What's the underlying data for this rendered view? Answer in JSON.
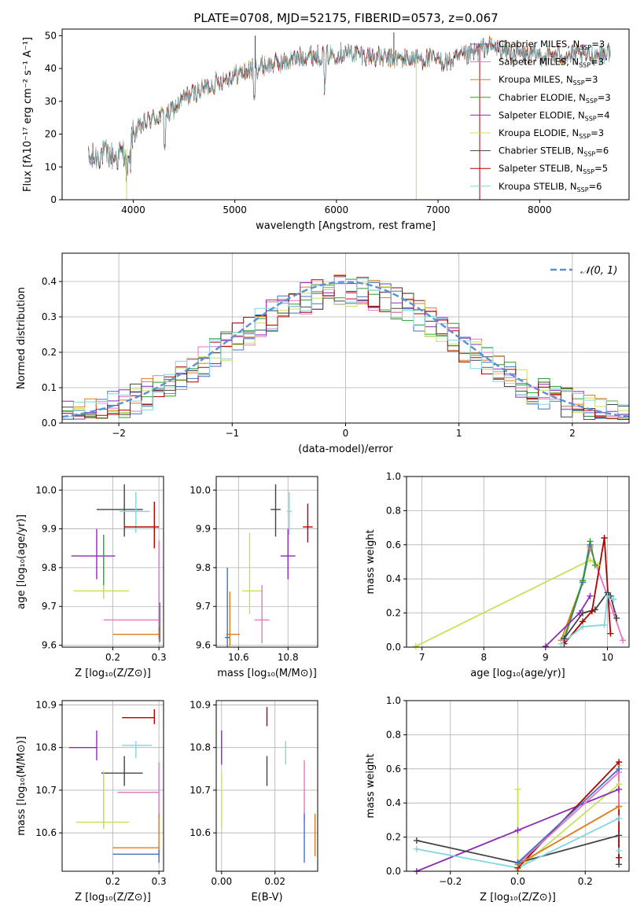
{
  "figure_title": "PLATE=0708, MJD=52175, FIBERID=0573, z=0.067",
  "colors": {
    "cha_miles": "#4472c4",
    "sal_miles": "#e377c2",
    "kro_miles": "#e07b1a",
    "cha_elodie": "#2ca02c",
    "sal_elodie": "#8c2bb8",
    "kro_elodie": "#c8e05a",
    "cha_stelib": "#444444",
    "sal_stelib": "#b00000",
    "kro_stelib": "#7fd6df",
    "gauss": "#5b8fd6",
    "grid": "#b0b0b0"
  },
  "legend_entries": [
    {
      "name": "Chabrier MILES",
      "n": "3",
      "key": "cha_miles"
    },
    {
      "name": "Salpeter MILES",
      "n": "3",
      "key": "sal_miles"
    },
    {
      "name": "Kroupa MILES",
      "n": "3",
      "key": "kro_miles"
    },
    {
      "name": "Chabrier ELODIE",
      "n": "3",
      "key": "cha_elodie"
    },
    {
      "name": "Salpeter ELODIE",
      "n": "4",
      "key": "sal_elodie"
    },
    {
      "name": "Kroupa ELODIE",
      "n": "3",
      "key": "kro_elodie"
    },
    {
      "name": "Chabrier STELIB",
      "n": "6",
      "key": "cha_stelib"
    },
    {
      "name": "Salpeter STELIB",
      "n": "5",
      "key": "sal_stelib"
    },
    {
      "name": "Kroupa STELIB",
      "n": "6",
      "key": "kro_stelib"
    }
  ],
  "chart_data": [
    {
      "id": "spectrum",
      "type": "line",
      "title": "PLATE=0708, MJD=52175, FIBERID=0573, z=0.067",
      "xlabel": "wavelength [Angstrom, rest frame]",
      "ylabel": "Flux [fλ10⁻¹⁷ erg cm⁻² s⁻¹ A⁻¹]",
      "xlim": [
        3300,
        8880
      ],
      "ylim": [
        0,
        52
      ],
      "xticks": [
        4000,
        5000,
        6000,
        7000,
        8000
      ],
      "yticks": [
        0,
        10,
        20,
        30,
        40,
        50
      ],
      "continuum": [
        [
          3560,
          12
        ],
        [
          3700,
          14
        ],
        [
          3850,
          13
        ],
        [
          3950,
          16
        ],
        [
          4000,
          20
        ],
        [
          4100,
          23
        ],
        [
          4200,
          25
        ],
        [
          4350,
          26
        ],
        [
          4500,
          31
        ],
        [
          4700,
          34
        ],
        [
          4900,
          37
        ],
        [
          5100,
          39
        ],
        [
          5300,
          41
        ],
        [
          5500,
          42
        ],
        [
          5700,
          44
        ],
        [
          5900,
          44
        ],
        [
          6100,
          45
        ],
        [
          6300,
          44
        ],
        [
          6500,
          43
        ],
        [
          6700,
          43
        ],
        [
          6900,
          43
        ],
        [
          7100,
          42
        ],
        [
          7300,
          44
        ],
        [
          7500,
          47
        ],
        [
          7700,
          45
        ],
        [
          7900,
          44
        ],
        [
          8100,
          44
        ],
        [
          8300,
          44
        ],
        [
          8500,
          44
        ],
        [
          8700,
          45
        ]
      ],
      "features": [
        {
          "x": 3935,
          "y": 0,
          "series": "kro_elodie"
        },
        {
          "x": 5200,
          "y": 50,
          "series": "cha_stelib"
        },
        {
          "x": 6565,
          "y": 51,
          "series": "cha_stelib"
        },
        {
          "x": 6785,
          "y": 0,
          "series": "kro_elodie"
        },
        {
          "x": 7410,
          "y": 0,
          "series": "sal_stelib"
        }
      ]
    },
    {
      "id": "residuals",
      "type": "histogram",
      "xlabel": "(data-model)/error",
      "ylabel": "Normed distribution",
      "xlim": [
        -2.5,
        2.5
      ],
      "ylim": [
        0,
        0.48
      ],
      "xticks": [
        -2,
        -1,
        0,
        1,
        2
      ],
      "yticks": [
        0.0,
        0.1,
        0.2,
        0.3,
        0.4
      ],
      "bin_width": 0.1,
      "legend": {
        "label": "𝒩(0, 1)",
        "placement": "top-right"
      },
      "gaussian": {
        "mu": 0,
        "sigma": 1
      }
    },
    {
      "id": "age_vs_Z",
      "type": "errorbar",
      "xlabel": "Z [log₁₀(Z/Z⊙)]",
      "ylabel": "age  [log₁₀(age/yr)]",
      "xlim": [
        0.09,
        0.31
      ],
      "ylim": [
        9.595,
        10.035
      ],
      "xticks": [
        0.2,
        0.3
      ],
      "yticks": [
        9.6,
        9.7,
        9.8,
        9.9,
        10.0
      ],
      "points": [
        {
          "s": "cha_stelib",
          "x": 0.225,
          "y": 9.95,
          "xe": [
            0.06,
            0.04
          ],
          "ye": [
            0.07,
            0.065
          ]
        },
        {
          "s": "kro_stelib",
          "x": 0.25,
          "y": 9.945,
          "xe": [
            0.035,
            0.03
          ],
          "ye": [
            0.055,
            0.05
          ]
        },
        {
          "s": "sal_stelib",
          "x": 0.29,
          "y": 9.905,
          "xe": [
            0.065,
            0.01
          ],
          "ye": [
            0.055,
            0.065
          ]
        },
        {
          "s": "sal_elodie",
          "x": 0.165,
          "y": 9.83,
          "xe": [
            0.055,
            0.04
          ],
          "ye": [
            0.06,
            0.07
          ]
        },
        {
          "s": "cha_elodie",
          "x": 0.18,
          "y": 9.8,
          "xe": [
            0.0,
            0.0
          ],
          "ye": [
            0.08,
            0.085
          ]
        },
        {
          "s": "kro_elodie",
          "x": 0.18,
          "y": 9.74,
          "xe": [
            0.065,
            0.055
          ],
          "ye": [
            0.02,
            0.015
          ]
        },
        {
          "s": "sal_miles",
          "x": 0.3,
          "y": 9.665,
          "xe": [
            0.12,
            0.0
          ],
          "ye": [
            0.05,
            0.205
          ]
        },
        {
          "s": "kro_miles",
          "x": 0.3,
          "y": 9.628,
          "xe": [
            0.1,
            0.0
          ],
          "ye": [
            0.01,
            0.02
          ]
        },
        {
          "s": "cha_miles",
          "x": 0.302,
          "y": 9.62,
          "xe": [
            0.0,
            0.0
          ],
          "ye": [
            0.012,
            0.09
          ]
        }
      ]
    },
    {
      "id": "age_vs_mass",
      "type": "errorbar",
      "xlabel": "mass [log₁₀(M/M⊙)]",
      "xlim": [
        10.51,
        10.92
      ],
      "ylim": [
        9.595,
        10.035
      ],
      "xticks": [
        10.6,
        10.8
      ],
      "yticks": [
        9.6,
        9.7,
        9.8,
        9.9,
        10.0
      ],
      "points": [
        {
          "s": "cha_stelib",
          "x": 10.75,
          "y": 9.95,
          "xe": [
            0.02,
            0.02
          ],
          "ye": [
            0.07,
            0.065
          ]
        },
        {
          "s": "kro_stelib",
          "x": 10.805,
          "y": 9.945,
          "xe": [
            0.01,
            0.01
          ],
          "ye": [
            0.06,
            0.05
          ]
        },
        {
          "s": "sal_stelib",
          "x": 10.88,
          "y": 9.905,
          "xe": [
            0.02,
            0.02
          ],
          "ye": [
            0.04,
            0.06
          ]
        },
        {
          "s": "sal_elodie",
          "x": 10.8,
          "y": 9.83,
          "xe": [
            0.03,
            0.03
          ],
          "ye": [
            0.06,
            0.07
          ]
        },
        {
          "s": "kro_elodie",
          "x": 10.645,
          "y": 9.74,
          "xe": [
            0.03,
            0.05
          ],
          "ye": [
            0.06,
            0.15
          ]
        },
        {
          "s": "sal_miles",
          "x": 10.695,
          "y": 9.665,
          "xe": [
            0.03,
            0.03
          ],
          "ye": [
            0.06,
            0.09
          ]
        },
        {
          "s": "kro_miles",
          "x": 10.565,
          "y": 9.628,
          "xe": [
            0.015,
            0.04
          ],
          "ye": [
            0.03,
            0.11
          ]
        },
        {
          "s": "cha_miles",
          "x": 10.555,
          "y": 9.62,
          "xe": [
            0.01,
            0.01
          ],
          "ye": [
            0.025,
            0.18
          ]
        }
      ]
    },
    {
      "id": "massweight_vs_age",
      "type": "line",
      "xlabel": "age  [log₁₀(age/yr)]",
      "ylabel": "mass weight",
      "xlim": [
        6.75,
        10.35
      ],
      "ylim": [
        0,
        1
      ],
      "xticks": [
        7,
        8,
        9,
        10
      ],
      "yticks": [
        0.0,
        0.2,
        0.4,
        0.6,
        0.8,
        1.0
      ],
      "series": [
        {
          "s": "kro_elodie",
          "x": [
            6.9,
            9.72,
            9.85
          ],
          "y": [
            0.005,
            0.51,
            0.48
          ]
        },
        {
          "s": "kro_miles",
          "x": [
            9.25,
            9.6,
            9.72
          ],
          "y": [
            0.04,
            0.38,
            0.59
          ]
        },
        {
          "s": "sal_miles",
          "x": [
            9.3,
            9.6,
            9.72,
            10.1,
            10.25
          ],
          "y": [
            0.04,
            0.38,
            0.58,
            0.2,
            0.04
          ]
        },
        {
          "s": "cha_miles",
          "x": [
            9.3,
            9.6,
            9.72
          ],
          "y": [
            0.05,
            0.38,
            0.6
          ]
        },
        {
          "s": "cha_elodie",
          "x": [
            9.3,
            9.6,
            9.72,
            9.8
          ],
          "y": [
            0.05,
            0.39,
            0.62,
            0.48
          ]
        },
        {
          "s": "sal_elodie",
          "x": [
            9.0,
            9.55,
            9.72
          ],
          "y": [
            0.005,
            0.2,
            0.3
          ]
        },
        {
          "s": "cha_stelib",
          "x": [
            9.3,
            9.6,
            9.8,
            10.0,
            10.05,
            10.15
          ],
          "y": [
            0.05,
            0.2,
            0.22,
            0.32,
            0.3,
            0.17
          ]
        },
        {
          "s": "sal_stelib",
          "x": [
            9.3,
            9.6,
            9.75,
            9.95,
            10.05
          ],
          "y": [
            0.02,
            0.15,
            0.21,
            0.64,
            0.08
          ]
        },
        {
          "s": "kro_stelib",
          "x": [
            9.25,
            9.6,
            9.95,
            10.0,
            10.1
          ],
          "y": [
            0.02,
            0.12,
            0.13,
            0.3,
            0.28
          ]
        }
      ]
    },
    {
      "id": "mass_vs_Z",
      "type": "errorbar",
      "xlabel": "Z [log₁₀(Z/Z⊙)]",
      "ylabel": "mass [log₁₀(M/M⊙)]",
      "xlim": [
        0.09,
        0.31
      ],
      "ylim": [
        10.51,
        10.91
      ],
      "xticks": [
        0.2,
        0.3
      ],
      "yticks": [
        10.6,
        10.7,
        10.8,
        10.9
      ],
      "points": [
        {
          "s": "sal_stelib",
          "x": 0.29,
          "y": 10.87,
          "xe": [
            0.07,
            0.0
          ],
          "ye": [
            0.015,
            0.02
          ]
        },
        {
          "s": "kro_stelib",
          "x": 0.25,
          "y": 10.805,
          "xe": [
            0.03,
            0.035
          ],
          "ye": [
            0.03,
            0.01
          ]
        },
        {
          "s": "sal_elodie",
          "x": 0.165,
          "y": 10.8,
          "xe": [
            0.06,
            0.0
          ],
          "ye": [
            0.03,
            0.04
          ]
        },
        {
          "s": "cha_stelib",
          "x": 0.225,
          "y": 10.74,
          "xe": [
            0.05,
            0.04
          ],
          "ye": [
            0.03,
            0.04
          ]
        },
        {
          "s": "sal_miles",
          "x": 0.3,
          "y": 10.695,
          "xe": [
            0.09,
            0.0
          ],
          "ye": [
            0.06,
            0.07
          ]
        },
        {
          "s": "cha_elodie",
          "x": 0.18,
          "y": 10.68,
          "xe": [
            0.0,
            0.0
          ],
          "ye": [
            0.07,
            0.06
          ]
        },
        {
          "s": "kro_elodie",
          "x": 0.18,
          "y": 10.625,
          "xe": [
            0.06,
            0.055
          ],
          "ye": [
            0.015,
            0.12
          ]
        },
        {
          "s": "kro_miles",
          "x": 0.3,
          "y": 10.565,
          "xe": [
            0.1,
            0.0
          ],
          "ye": [
            0.02,
            0.08
          ]
        },
        {
          "s": "cha_miles",
          "x": 0.3,
          "y": 10.55,
          "xe": [
            0.1,
            0.0
          ],
          "ye": [
            0.02,
            0.01
          ]
        }
      ]
    },
    {
      "id": "mass_vs_ebv",
      "type": "errorbar",
      "xlabel": "E(B-V)",
      "xlim": [
        -0.002,
        0.036
      ],
      "ylim": [
        10.51,
        10.91
      ],
      "xticks": [
        0.0,
        0.02
      ],
      "yticks": [
        10.6,
        10.7,
        10.8,
        10.9
      ],
      "points": [
        {
          "s": "sal_stelib",
          "x": 0.017,
          "y": 10.87,
          "xe": [
            0,
            0
          ],
          "ye": [
            0.02,
            0.025
          ]
        },
        {
          "s": "kro_stelib",
          "x": 0.024,
          "y": 10.79,
          "xe": [
            0,
            0
          ],
          "ye": [
            0.03,
            0.025
          ]
        },
        {
          "s": "sal_elodie",
          "x": 0.0,
          "y": 10.8,
          "xe": [
            0,
            0
          ],
          "ye": [
            0.04,
            0.04
          ]
        },
        {
          "s": "cha_stelib",
          "x": 0.017,
          "y": 10.74,
          "xe": [
            0,
            0
          ],
          "ye": [
            0.03,
            0.04
          ]
        },
        {
          "s": "kro_elodie",
          "x": 0.0,
          "y": 10.68,
          "xe": [
            0,
            0
          ],
          "ye": [
            0.07,
            0.065
          ]
        },
        {
          "s": "sal_miles",
          "x": 0.031,
          "y": 10.7,
          "xe": [
            0,
            0
          ],
          "ye": [
            0.07,
            0.07
          ]
        },
        {
          "s": "kro_miles",
          "x": 0.035,
          "y": 10.595,
          "xe": [
            0,
            0
          ],
          "ye": [
            0.05,
            0.05
          ]
        },
        {
          "s": "cha_miles",
          "x": 0.031,
          "y": 10.59,
          "xe": [
            0,
            0
          ],
          "ye": [
            0.06,
            0.055
          ]
        }
      ]
    },
    {
      "id": "massweight_vs_Z",
      "type": "line",
      "xlabel": "Z [log₁₀(Z/Z⊙)]",
      "ylabel": "mass weight",
      "xlim": [
        -0.33,
        0.33
      ],
      "ylim": [
        0,
        1
      ],
      "xticks": [
        -0.2,
        0.0,
        0.2
      ],
      "yticks": [
        0.0,
        0.2,
        0.4,
        0.6,
        0.8,
        1.0
      ],
      "series": [
        {
          "s": "kro_elodie",
          "x": [
            0.0,
            0.0,
            0.3,
            0.3
          ],
          "y": [
            0.48,
            0.01,
            0.51,
            0.62
          ]
        },
        {
          "s": "sal_elodie",
          "x": [
            -0.3,
            0.0,
            0.3
          ],
          "y": [
            0.0,
            0.24,
            0.48
          ]
        },
        {
          "s": "cha_stelib",
          "x": [
            -0.3,
            0.0,
            0.3,
            0.3
          ],
          "y": [
            0.18,
            0.05,
            0.21,
            0.04
          ]
        },
        {
          "s": "kro_stelib",
          "x": [
            -0.3,
            0.0,
            0.3,
            0.3
          ],
          "y": [
            0.13,
            0.02,
            0.31,
            0.12
          ]
        },
        {
          "s": "sal_stelib",
          "x": [
            0.0,
            0.3,
            0.3
          ],
          "y": [
            0.02,
            0.64,
            0.08
          ]
        },
        {
          "s": "sal_miles",
          "x": [
            0.0,
            0.3,
            0.3
          ],
          "y": [
            0.04,
            0.58,
            0.38
          ]
        },
        {
          "s": "kro_miles",
          "x": [
            0.0,
            0.3
          ],
          "y": [
            0.04,
            0.38
          ]
        },
        {
          "s": "cha_miles",
          "x": [
            0.0,
            0.3
          ],
          "y": [
            0.05,
            0.6
          ]
        }
      ]
    }
  ]
}
